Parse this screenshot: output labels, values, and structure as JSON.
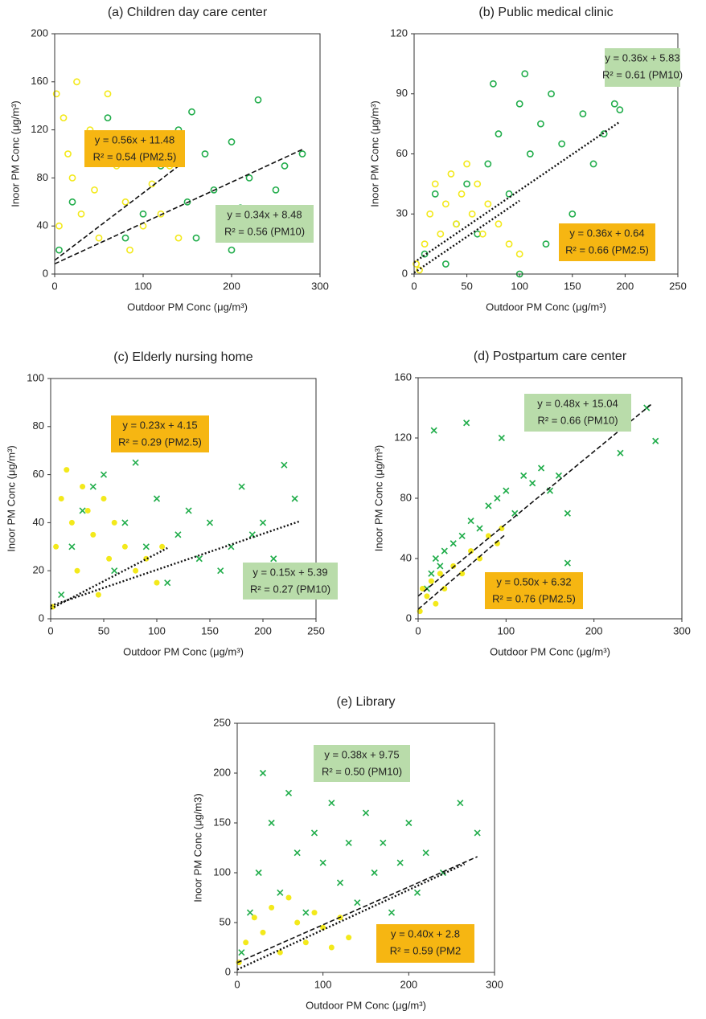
{
  "chart_data": [
    {
      "type": "scatter",
      "title": "(a) Children day care center",
      "x_label": "Outdoor PM Conc (μg/m³)",
      "y_label": "Inoor PM Conc (μg/m³)",
      "xlim": [
        0,
        300
      ],
      "xticks": [
        0,
        100,
        200,
        300
      ],
      "ylim": [
        0,
        200
      ],
      "yticks": [
        0,
        40,
        80,
        120,
        160,
        200
      ],
      "series": [
        {
          "name": "PM10",
          "color": "#21ad4b",
          "marker": "circle",
          "x": [
            5,
            20,
            40,
            60,
            80,
            100,
            120,
            140,
            150,
            160,
            170,
            180,
            190,
            200,
            210,
            220,
            230,
            240,
            250,
            260,
            270,
            280,
            155,
            200
          ],
          "values": [
            20,
            60,
            100,
            130,
            30,
            50,
            90,
            120,
            60,
            30,
            100,
            70,
            40,
            110,
            55,
            80,
            145,
            40,
            70,
            90,
            50,
            100,
            135,
            20
          ]
        },
        {
          "name": "PM2.5",
          "color": "#f3e91b",
          "marker": "circle",
          "x": [
            2,
            10,
            15,
            20,
            25,
            30,
            40,
            50,
            60,
            70,
            80,
            90,
            100,
            110,
            120,
            130,
            140,
            5,
            45,
            85
          ],
          "values": [
            150,
            130,
            100,
            80,
            160,
            50,
            120,
            30,
            150,
            90,
            60,
            110,
            40,
            75,
            50,
            90,
            30,
            40,
            70,
            20
          ]
        }
      ],
      "trendlines": [
        {
          "slope": 0.56,
          "intercept": 11.48,
          "x": [
            0,
            140
          ],
          "style": "dashed"
        },
        {
          "slope": 0.34,
          "intercept": 8.48,
          "x": [
            0,
            280
          ],
          "style": "dashed"
        }
      ],
      "annotations": [
        {
          "lines": [
            "y = 0.56x + 11.48",
            "R² = 0.54 (PM2.5)"
          ],
          "color": "#f6b612"
        },
        {
          "lines": [
            "y = 0.34x + 8.48",
            "R² = 0.56 (PM10)"
          ],
          "color": "#b9dcaa"
        }
      ]
    },
    {
      "type": "scatter",
      "title": "(b) Public medical clinic",
      "x_label": "Outdoor PM Conc (μg/m³)",
      "y_label": "Inoor PM Conc (μg/m³)",
      "xlim": [
        0,
        250
      ],
      "xticks": [
        0,
        50,
        100,
        150,
        200,
        250
      ],
      "ylim": [
        0,
        120
      ],
      "yticks": [
        0,
        30,
        60,
        90,
        120
      ],
      "series": [
        {
          "name": "PM10",
          "color": "#21ad4b",
          "marker": "circle",
          "x": [
            10,
            20,
            30,
            40,
            50,
            60,
            70,
            80,
            90,
            100,
            105,
            110,
            120,
            130,
            140,
            150,
            160,
            170,
            180,
            190,
            195,
            75,
            125,
            100
          ],
          "values": [
            10,
            40,
            5,
            25,
            45,
            20,
            55,
            70,
            40,
            85,
            100,
            60,
            75,
            90,
            65,
            30,
            80,
            55,
            70,
            85,
            82,
            95,
            15,
            0
          ]
        },
        {
          "name": "PM2.5",
          "color": "#f3e91b",
          "marker": "circle",
          "x": [
            2,
            10,
            15,
            20,
            25,
            30,
            35,
            40,
            45,
            50,
            55,
            60,
            65,
            70,
            80,
            90,
            100,
            5
          ],
          "values": [
            5,
            15,
            30,
            45,
            20,
            35,
            50,
            25,
            40,
            55,
            30,
            45,
            20,
            35,
            25,
            15,
            10,
            2
          ]
        }
      ],
      "trendlines": [
        {
          "slope": 0.36,
          "intercept": 5.83,
          "x": [
            0,
            195
          ],
          "style": "dotted"
        },
        {
          "slope": 0.36,
          "intercept": 0.64,
          "x": [
            0,
            100
          ],
          "style": "dotted"
        }
      ],
      "annotations": [
        {
          "lines": [
            "y = 0.36x + 5.83",
            "R² = 0.61 (PM10)"
          ],
          "color": "#b9dcaa"
        },
        {
          "lines": [
            "y = 0.36x + 0.64",
            "R² = 0.66 (PM2.5)"
          ],
          "color": "#f6b612"
        }
      ]
    },
    {
      "type": "scatter",
      "title": "(c) Elderly nursing home",
      "x_label": "Outdoor PM Conc (μg/m³)",
      "y_label": "Inoor PM Conc (μg/m³)",
      "xlim": [
        0,
        250
      ],
      "xticks": [
        0,
        50,
        100,
        150,
        200,
        250
      ],
      "ylim": [
        0,
        100
      ],
      "yticks": [
        0,
        20,
        40,
        60,
        80,
        100
      ],
      "series": [
        {
          "name": "PM10",
          "color": "#21ad4b",
          "marker": "cross",
          "x": [
            10,
            20,
            30,
            40,
            50,
            60,
            70,
            80,
            90,
            100,
            110,
            120,
            130,
            140,
            150,
            160,
            170,
            180,
            190,
            200,
            210,
            220,
            230,
            145,
            65
          ],
          "values": [
            10,
            30,
            45,
            55,
            60,
            20,
            40,
            65,
            30,
            50,
            15,
            35,
            45,
            25,
            40,
            20,
            30,
            55,
            35,
            40,
            25,
            64,
            50,
            80,
            72
          ]
        },
        {
          "name": "PM2.5",
          "color": "#f3e91b",
          "marker": "dot",
          "x": [
            2,
            5,
            10,
            15,
            20,
            25,
            30,
            35,
            40,
            45,
            50,
            55,
            60,
            70,
            80,
            90,
            100,
            105
          ],
          "values": [
            5,
            30,
            50,
            62,
            40,
            20,
            55,
            45,
            35,
            10,
            50,
            25,
            40,
            30,
            20,
            25,
            15,
            30
          ]
        }
      ],
      "trendlines": [
        {
          "slope": 0.15,
          "intercept": 5.39,
          "x": [
            0,
            235
          ],
          "style": "dotted"
        },
        {
          "slope": 0.23,
          "intercept": 4.15,
          "x": [
            0,
            110
          ],
          "style": "dotted"
        }
      ],
      "annotations": [
        {
          "lines": [
            "y = 0.23x + 4.15",
            "R² = 0.29 (PM2.5)"
          ],
          "color": "#f6b612"
        },
        {
          "lines": [
            "y = 0.15x + 5.39",
            "R² = 0.27 (PM10)"
          ],
          "color": "#b9dcaa"
        }
      ]
    },
    {
      "type": "scatter",
      "title": "(d) Postpartum care center",
      "x_label": "Outdoor PM Conc (μg/m³)",
      "y_label": "Inoor PM Conc (μg/m³)",
      "xlim": [
        0,
        300
      ],
      "xticks": [
        0,
        100,
        200,
        300
      ],
      "ylim": [
        0,
        160
      ],
      "yticks": [
        0,
        40,
        80,
        120,
        160
      ],
      "series": [
        {
          "name": "PM10",
          "color": "#21ad4b",
          "marker": "cross",
          "x": [
            10,
            15,
            20,
            18,
            25,
            30,
            40,
            50,
            60,
            70,
            80,
            90,
            100,
            110,
            120,
            130,
            140,
            150,
            160,
            170,
            55,
            95,
            230,
            260,
            270,
            170
          ],
          "values": [
            20,
            30,
            40,
            125,
            35,
            45,
            50,
            55,
            65,
            60,
            75,
            80,
            85,
            70,
            95,
            90,
            100,
            85,
            95,
            70,
            130,
            120,
            110,
            140,
            118,
            37
          ]
        },
        {
          "name": "PM2.5",
          "color": "#f3e91b",
          "marker": "dot",
          "x": [
            2,
            10,
            15,
            20,
            25,
            30,
            40,
            50,
            60,
            70,
            80,
            90,
            95,
            5
          ],
          "values": [
            5,
            15,
            25,
            10,
            30,
            20,
            35,
            30,
            45,
            40,
            55,
            50,
            60,
            20
          ]
        }
      ],
      "trendlines": [
        {
          "slope": 0.48,
          "intercept": 15.04,
          "x": [
            0,
            265
          ],
          "style": "dashed"
        },
        {
          "slope": 0.5,
          "intercept": 6.32,
          "x": [
            0,
            100
          ],
          "style": "dashed"
        }
      ],
      "annotations": [
        {
          "lines": [
            "y = 0.48x + 15.04",
            "R² = 0.66 (PM10)"
          ],
          "color": "#b9dcaa"
        },
        {
          "lines": [
            "y = 0.50x + 6.32",
            "R² = 0.76 (PM2.5)"
          ],
          "color": "#f6b612"
        }
      ]
    },
    {
      "type": "scatter",
      "title": "(e) Library",
      "x_label": "Outdoor PM Conc (μg/m³)",
      "y_label": "Inoor PM Conc (μg/m3)",
      "xlim": [
        0,
        300
      ],
      "xticks": [
        0,
        100,
        200,
        300
      ],
      "ylim": [
        0,
        250
      ],
      "yticks": [
        0,
        50,
        100,
        150,
        200,
        250
      ],
      "series": [
        {
          "name": "PM10",
          "color": "#21ad4b",
          "marker": "cross",
          "x": [
            5,
            15,
            25,
            30,
            40,
            50,
            60,
            70,
            80,
            90,
            100,
            110,
            120,
            130,
            140,
            150,
            160,
            170,
            180,
            190,
            200,
            210,
            220,
            240,
            260,
            280,
            270
          ],
          "values": [
            20,
            60,
            100,
            200,
            150,
            80,
            180,
            120,
            60,
            140,
            110,
            170,
            90,
            130,
            70,
            160,
            100,
            130,
            60,
            110,
            150,
            80,
            120,
            100,
            170,
            140,
            40
          ]
        },
        {
          "name": "PM2.5",
          "color": "#f3e91b",
          "marker": "dot",
          "x": [
            2,
            10,
            20,
            30,
            40,
            50,
            60,
            70,
            80,
            90,
            100,
            110,
            120,
            130
          ],
          "values": [
            10,
            30,
            55,
            40,
            65,
            20,
            75,
            50,
            30,
            60,
            45,
            25,
            55,
            35
          ]
        }
      ],
      "trendlines": [
        {
          "slope": 0.38,
          "intercept": 9.75,
          "x": [
            0,
            280
          ],
          "style": "dashed"
        },
        {
          "slope": 0.4,
          "intercept": 2.8,
          "x": [
            0,
            265
          ],
          "style": "dotted"
        }
      ],
      "annotations": [
        {
          "lines": [
            "y = 0.38x + 9.75",
            "R² = 0.50 (PM10)"
          ],
          "color": "#b9dcaa"
        },
        {
          "lines": [
            "y = 0.40x + 2.8",
            "R² = 0.59 (PM2"
          ],
          "color": "#f6b612"
        }
      ]
    }
  ]
}
